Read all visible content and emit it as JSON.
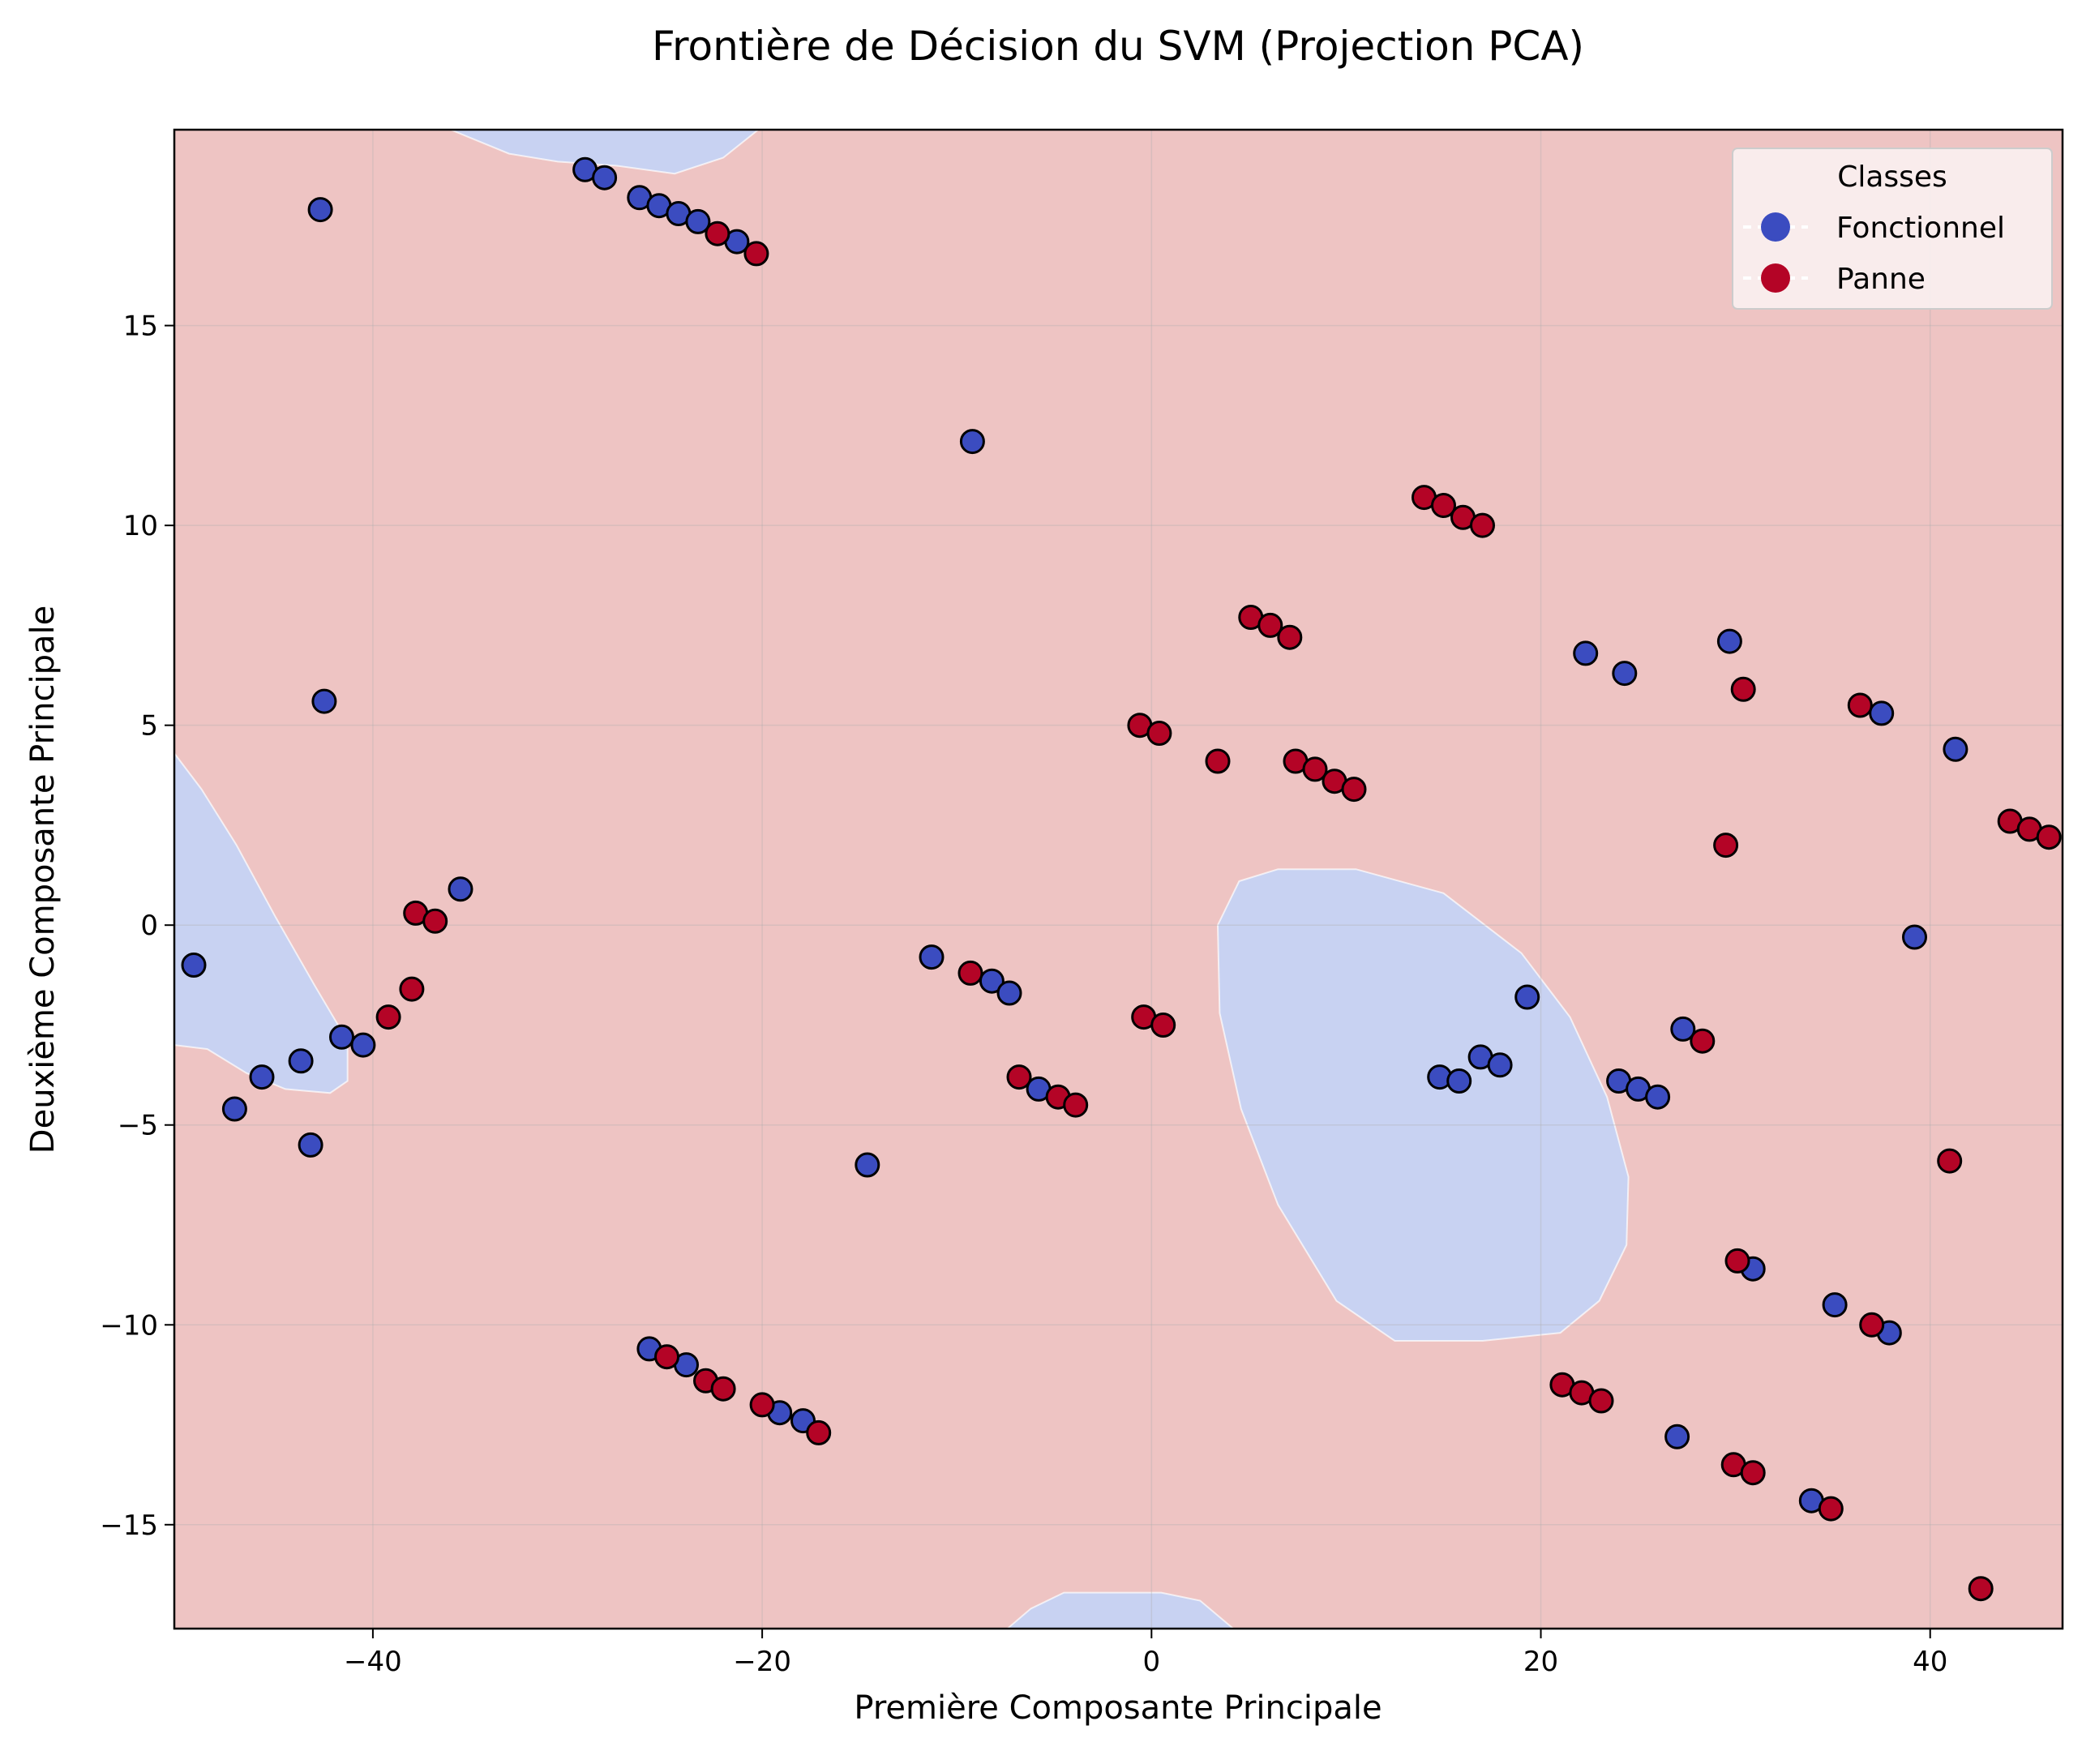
{
  "chart_data": {
    "type": "scatter",
    "title": "Frontière de Décision du SVM (Projection PCA)",
    "xlabel": "Première Composante Principale",
    "ylabel": "Deuxième Composante Principale",
    "xlim": [
      -50.2,
      46.8
    ],
    "ylim": [
      -17.6,
      19.9
    ],
    "xticks": [
      -40,
      -20,
      0,
      20,
      40
    ],
    "xtick_labels": [
      "−40",
      "−20",
      "0",
      "20",
      "40"
    ],
    "yticks": [
      -15,
      -10,
      -5,
      0,
      5,
      10,
      15
    ],
    "ytick_labels": [
      "−15",
      "−10",
      "−5",
      "0",
      "5",
      "10",
      "15"
    ],
    "grid": true,
    "legend": {
      "title": "Classes",
      "position": "top-right",
      "entries": [
        "Fonctionnel",
        "Panne"
      ]
    },
    "colors": {
      "fonctionnel": "#3b4cc0",
      "panne": "#b40426",
      "region_fonctionnel": "#c8d2f2",
      "region_panne": "#eec4c3"
    },
    "decision_regions": [
      {
        "class": "Fonctionnel",
        "polygon": [
          [
            -50.2,
            4.3
          ],
          [
            -48.8,
            3.4
          ],
          [
            -47.0,
            2.0
          ],
          [
            -45.0,
            0.2
          ],
          [
            -43.0,
            -1.5
          ],
          [
            -41.3,
            -2.9
          ],
          [
            -41.3,
            -3.9
          ],
          [
            -42.2,
            -4.2
          ],
          [
            -44.5,
            -4.1
          ],
          [
            -46.5,
            -3.7
          ],
          [
            -48.5,
            -3.1
          ],
          [
            -50.2,
            -3.0
          ]
        ]
      },
      {
        "class": "Fonctionnel",
        "polygon": [
          [
            -36.0,
            19.9
          ],
          [
            -20.2,
            19.9
          ],
          [
            -22.0,
            19.2
          ],
          [
            -24.5,
            18.8
          ],
          [
            -27.5,
            19.0
          ],
          [
            -30.5,
            19.1
          ],
          [
            -33.0,
            19.3
          ],
          [
            -35.0,
            19.7
          ]
        ]
      },
      {
        "class": "Fonctionnel",
        "polygon": [
          [
            3.4,
            0.0
          ],
          [
            4.5,
            1.1
          ],
          [
            6.5,
            1.4
          ],
          [
            10.5,
            1.4
          ],
          [
            15.0,
            0.8
          ],
          [
            19.0,
            -0.7
          ],
          [
            21.5,
            -2.3
          ],
          [
            23.4,
            -4.3
          ],
          [
            24.5,
            -6.3
          ],
          [
            24.4,
            -8.0
          ],
          [
            23.0,
            -9.4
          ],
          [
            21.0,
            -10.2
          ],
          [
            17.0,
            -10.4
          ],
          [
            12.5,
            -10.4
          ],
          [
            9.5,
            -9.4
          ],
          [
            6.5,
            -7.0
          ],
          [
            4.6,
            -4.6
          ],
          [
            3.5,
            -2.2
          ]
        ]
      },
      {
        "class": "Fonctionnel",
        "polygon": [
          [
            -7.4,
            -17.6
          ],
          [
            -6.2,
            -17.1
          ],
          [
            -4.5,
            -16.7
          ],
          [
            0.5,
            -16.7
          ],
          [
            2.5,
            -16.9
          ],
          [
            4.2,
            -17.6
          ]
        ]
      }
    ],
    "series": [
      {
        "name": "Fonctionnel",
        "points": [
          [
            -42.7,
            17.9
          ],
          [
            -42.5,
            5.6
          ],
          [
            -29.1,
            18.9
          ],
          [
            -28.1,
            18.7
          ],
          [
            -26.3,
            18.2
          ],
          [
            -25.3,
            18.0
          ],
          [
            -24.3,
            17.8
          ],
          [
            -23.3,
            17.6
          ],
          [
            -21.3,
            17.1
          ],
          [
            -9.2,
            12.1
          ],
          [
            -49.2,
            -1.0
          ],
          [
            -35.5,
            0.9
          ],
          [
            -41.6,
            -2.8
          ],
          [
            -40.5,
            -3.0
          ],
          [
            -43.7,
            -3.4
          ],
          [
            -45.7,
            -3.8
          ],
          [
            -47.1,
            -4.6
          ],
          [
            -43.2,
            -5.5
          ],
          [
            -11.3,
            -0.8
          ],
          [
            -8.2,
            -1.4
          ],
          [
            -7.3,
            -1.7
          ],
          [
            -5.8,
            -4.1
          ],
          [
            -14.6,
            -6.0
          ],
          [
            19.3,
            -1.8
          ],
          [
            16.9,
            -3.3
          ],
          [
            17.9,
            -3.5
          ],
          [
            14.8,
            -3.8
          ],
          [
            15.8,
            -3.9
          ],
          [
            24.0,
            -3.9
          ],
          [
            25.0,
            -4.1
          ],
          [
            26.0,
            -4.3
          ],
          [
            27.3,
            -2.6
          ],
          [
            22.3,
            6.8
          ],
          [
            24.3,
            6.3
          ],
          [
            29.7,
            7.1
          ],
          [
            37.5,
            5.3
          ],
          [
            41.3,
            4.4
          ],
          [
            39.2,
            -0.3
          ],
          [
            30.9,
            -8.6
          ],
          [
            35.1,
            -9.5
          ],
          [
            37.9,
            -10.2
          ],
          [
            -25.8,
            -10.6
          ],
          [
            -23.9,
            -11.0
          ],
          [
            -19.1,
            -12.2
          ],
          [
            -17.9,
            -12.4
          ],
          [
            27.0,
            -12.8
          ],
          [
            33.9,
            -14.4
          ]
        ]
      },
      {
        "name": "Panne",
        "points": [
          [
            -22.3,
            17.3
          ],
          [
            -20.3,
            16.8
          ],
          [
            14.0,
            10.7
          ],
          [
            15.0,
            10.5
          ],
          [
            16.0,
            10.2
          ],
          [
            17.0,
            10.0
          ],
          [
            5.1,
            7.7
          ],
          [
            6.1,
            7.5
          ],
          [
            7.1,
            7.2
          ],
          [
            -0.6,
            5.0
          ],
          [
            0.4,
            4.8
          ],
          [
            3.4,
            4.1
          ],
          [
            7.4,
            4.1
          ],
          [
            8.4,
            3.9
          ],
          [
            9.4,
            3.6
          ],
          [
            10.4,
            3.4
          ],
          [
            30.4,
            5.9
          ],
          [
            36.4,
            5.5
          ],
          [
            29.5,
            2.0
          ],
          [
            44.1,
            2.6
          ],
          [
            45.1,
            2.4
          ],
          [
            46.1,
            2.2
          ],
          [
            -37.8,
            0.3
          ],
          [
            -36.8,
            0.1
          ],
          [
            -38.0,
            -1.6
          ],
          [
            -39.2,
            -2.3
          ],
          [
            -9.3,
            -1.2
          ],
          [
            -6.8,
            -3.8
          ],
          [
            -4.8,
            -4.3
          ],
          [
            -3.9,
            -4.5
          ],
          [
            -0.4,
            -2.3
          ],
          [
            0.6,
            -2.5
          ],
          [
            28.3,
            -2.9
          ],
          [
            41.0,
            -5.9
          ],
          [
            30.1,
            -8.4
          ],
          [
            37.0,
            -10.0
          ],
          [
            -24.9,
            -10.8
          ],
          [
            -22.9,
            -11.4
          ],
          [
            -22.0,
            -11.6
          ],
          [
            -20.0,
            -12.0
          ],
          [
            -17.1,
            -12.7
          ],
          [
            21.1,
            -11.5
          ],
          [
            22.1,
            -11.7
          ],
          [
            23.1,
            -11.9
          ],
          [
            29.9,
            -13.5
          ],
          [
            30.9,
            -13.7
          ],
          [
            34.9,
            -14.6
          ],
          [
            42.6,
            -16.6
          ]
        ]
      }
    ]
  }
}
